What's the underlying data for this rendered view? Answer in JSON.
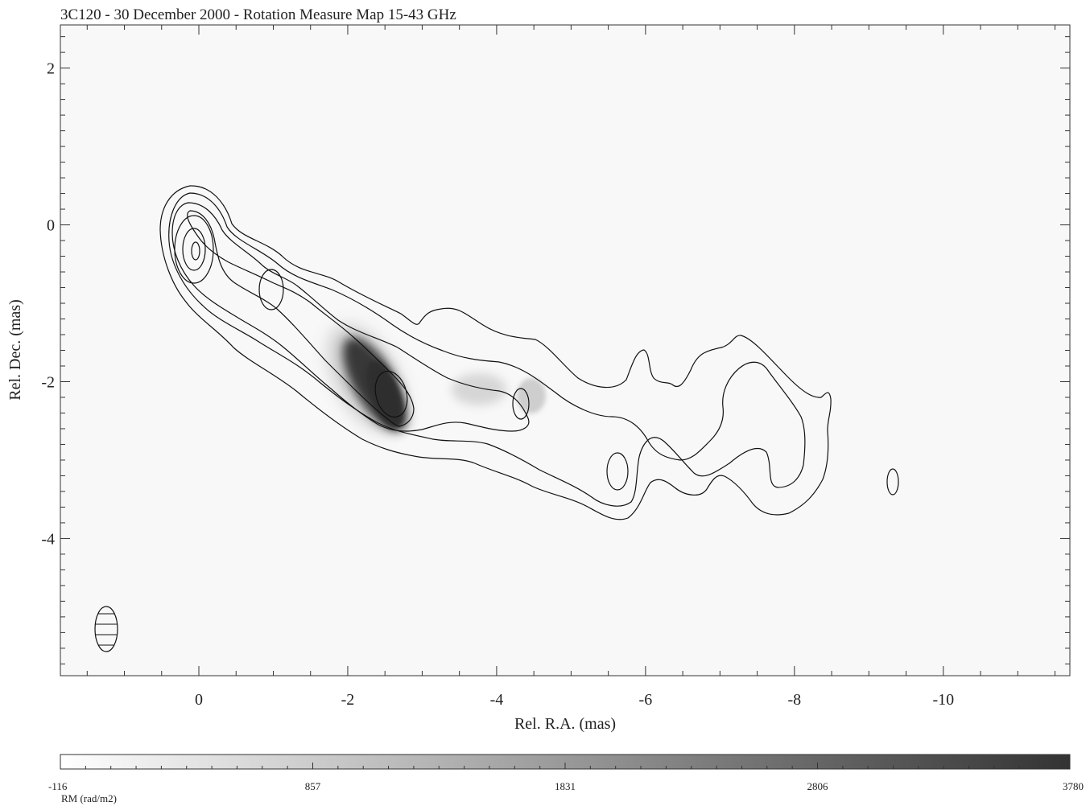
{
  "chart_data": {
    "type": "heatmap",
    "title": "3C120 - 30 December 2000 - Rotation Measure Map 15-43 GHz",
    "xlabel": "Rel. R.A. (mas)",
    "ylabel": "Rel. Dec. (mas)",
    "xlim": [
      1.86,
      -11.7
    ],
    "ylim": [
      -5.75,
      2.55
    ],
    "x_ticks": [
      0,
      -2,
      -4,
      -6,
      -8,
      -10
    ],
    "x_tick_labels": [
      "0",
      "-2",
      "-4",
      "-6",
      "-8",
      "-10"
    ],
    "y_ticks": [
      2,
      0,
      -2,
      -4
    ],
    "y_tick_labels": [
      "2",
      "0",
      "-2",
      "-4"
    ],
    "colorbar": {
      "label": "RM (rad/m2)",
      "range": [
        -116,
        3780
      ],
      "tick_labels": [
        "-116",
        "857",
        "1831",
        "2806",
        "3780"
      ],
      "colormap": "white-to-black"
    },
    "rm_features": [
      {
        "name": "rm-peak-region",
        "x": -2.4,
        "y": -1.95,
        "value": 3600
      },
      {
        "name": "rm-faint-region-a",
        "x": -3.8,
        "y": -1.9,
        "value": 700
      },
      {
        "name": "rm-faint-region-b",
        "x": -4.4,
        "y": -1.95,
        "value": 650
      }
    ],
    "beam": {
      "x": -1.25,
      "y": -5.15,
      "major_mas": 0.9,
      "minor_mas": 0.3
    }
  }
}
